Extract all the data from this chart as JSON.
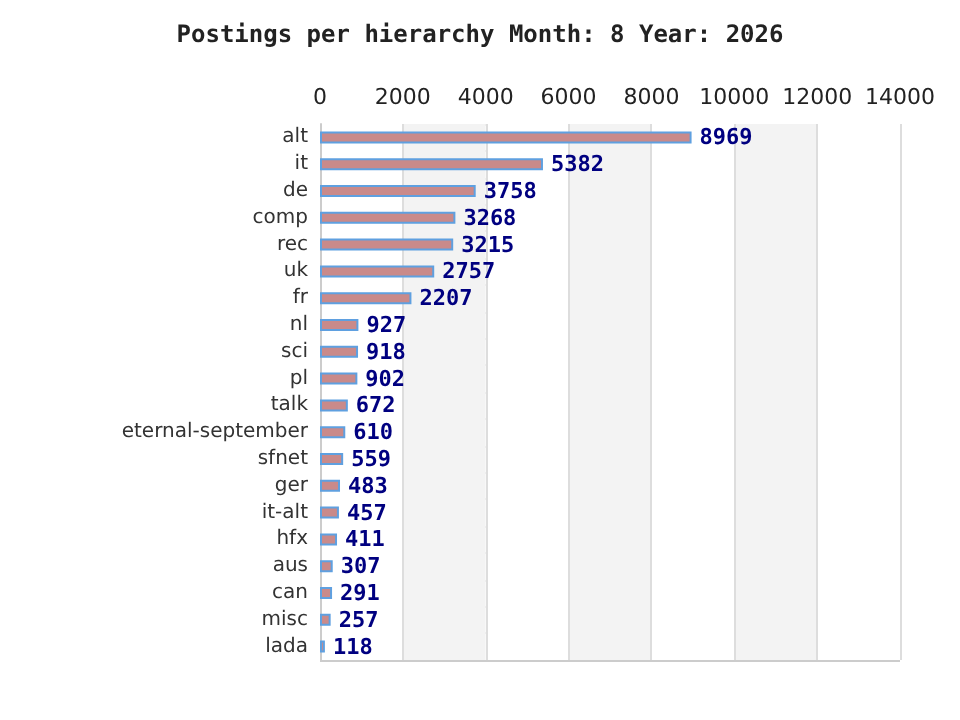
{
  "chart_data": {
    "type": "bar",
    "orientation": "horizontal",
    "title": "Postings per hierarchy Month: 8 Year: 2026",
    "categories": [
      "alt",
      "it",
      "de",
      "comp",
      "rec",
      "uk",
      "fr",
      "nl",
      "sci",
      "pl",
      "talk",
      "eternal-september",
      "sfnet",
      "ger",
      "it-alt",
      "hfx",
      "aus",
      "can",
      "misc",
      "lada"
    ],
    "values": [
      8969,
      5382,
      3758,
      3268,
      3215,
      2757,
      2207,
      927,
      918,
      902,
      672,
      610,
      559,
      483,
      457,
      411,
      307,
      291,
      257,
      118
    ],
    "color": "#c98a8a",
    "data_labels": true,
    "grid": true,
    "xlim": [
      0,
      14000
    ],
    "xticks": [
      0,
      2000,
      4000,
      6000,
      8000,
      10000,
      12000,
      14000
    ]
  }
}
